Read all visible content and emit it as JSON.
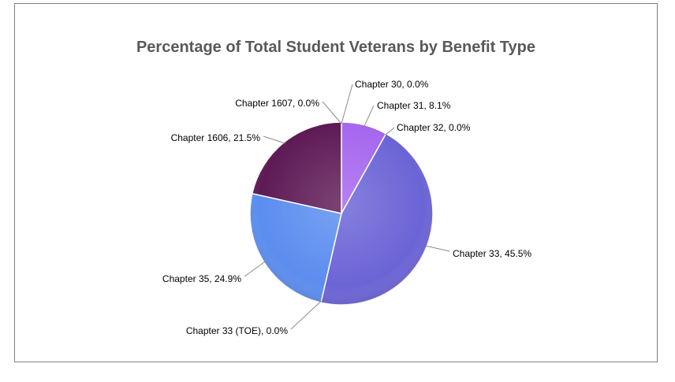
{
  "chart_data": {
    "type": "pie",
    "title": "Percentage of Total Student Veterans by Benefit Type",
    "slices": [
      {
        "name": "Chapter 30",
        "value": 0.0,
        "label": "Chapter 30, 0.0%",
        "color": "#cc99ff"
      },
      {
        "name": "Chapter 31",
        "value": 8.1,
        "label": "Chapter 31, 8.1%",
        "color": "#a566ee"
      },
      {
        "name": "Chapter 32",
        "value": 0.0,
        "label": "Chapter 32, 0.0%",
        "color": "#8c6de0"
      },
      {
        "name": "Chapter 33",
        "value": 45.5,
        "label": "Chapter 33, 45.5%",
        "color": "#6b64d6"
      },
      {
        "name": "Chapter 33 (TOE)",
        "value": 0.0,
        "label": "Chapter 33 (TOE), 0.0%",
        "color": "#4f6fd8"
      },
      {
        "name": "Chapter 35",
        "value": 24.9,
        "label": "Chapter 35, 24.9%",
        "color": "#5b8def"
      },
      {
        "name": "Chapter 1606",
        "value": 21.5,
        "label": "Chapter 1606, 21.5%",
        "color": "#5e1a55"
      },
      {
        "name": "Chapter 1607",
        "value": 0.0,
        "label": "Chapter 1607, 0.0%",
        "color": "#3f0f3a"
      }
    ]
  }
}
